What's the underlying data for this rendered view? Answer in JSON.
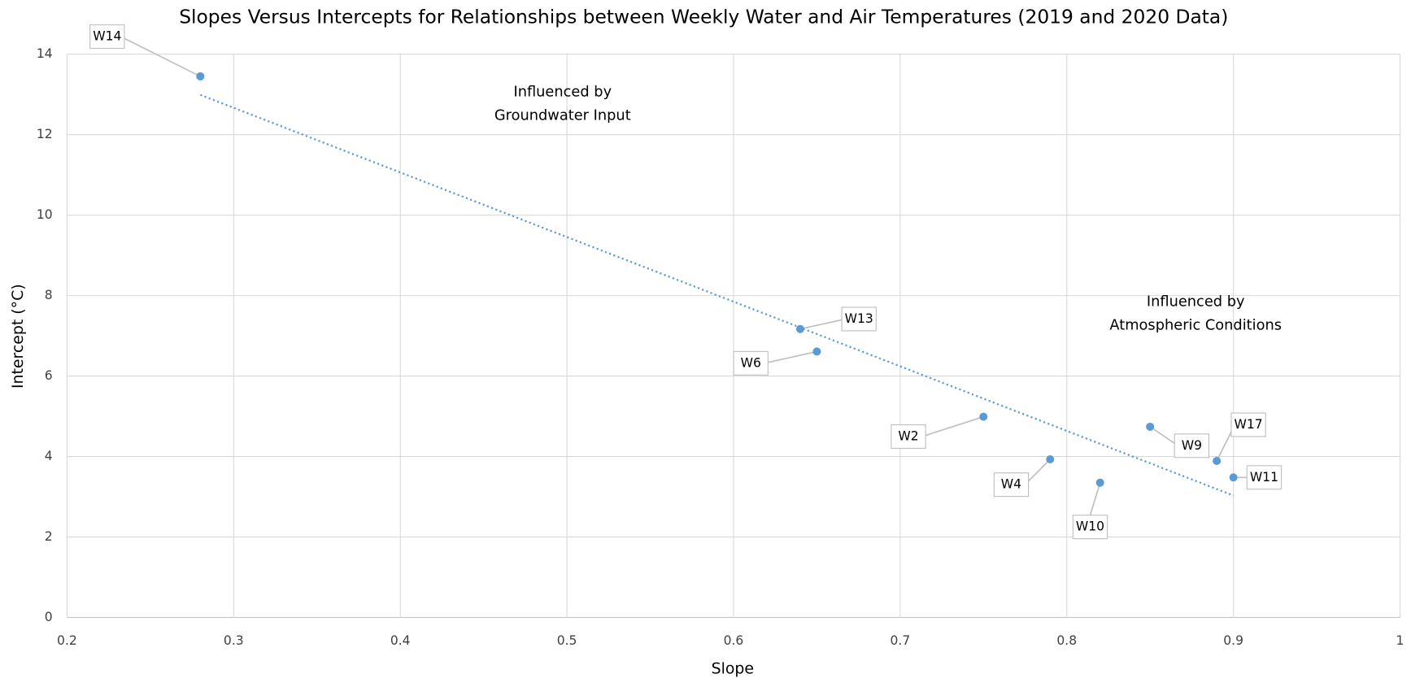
{
  "chart_data": {
    "type": "scatter",
    "title": "Slopes Versus Intercepts for Relationships between Weekly Water and Air Temperatures (2019 and 2020 Data)",
    "x_label": "Slope",
    "y_label": "Intercept (°C)",
    "series": [
      {
        "name": "Sites",
        "color": "#5b9bd5",
        "labels": [
          "W14",
          "W13",
          "W6",
          "W2",
          "W4",
          "W10",
          "W9",
          "W17",
          "W11"
        ],
        "x": [
          0.28,
          0.64,
          0.65,
          0.75,
          0.79,
          0.82,
          0.85,
          0.89,
          0.9
        ],
        "values": [
          13.45,
          7.17,
          6.61,
          4.99,
          3.93,
          3.35,
          4.74,
          3.89,
          3.48
        ]
      }
    ],
    "trendline": {
      "color": "#5b9bd5",
      "x": [
        0.28,
        0.9
      ],
      "values": [
        12.99,
        3.03
      ]
    },
    "annotations": [
      {
        "lines": [
          "Influenced by",
          "Groundwater Input"
        ]
      },
      {
        "lines": [
          "Influenced by",
          "Atmospheric Conditions"
        ]
      }
    ],
    "xlim": [
      0.2,
      1
    ],
    "xticks": [
      0.2,
      0.3,
      0.4,
      0.5,
      0.6,
      0.7,
      0.8,
      0.9,
      1
    ],
    "ylim": [
      0,
      14
    ],
    "yticks": [
      0,
      2,
      4,
      6,
      8,
      10,
      12,
      14
    ],
    "grid": true
  }
}
